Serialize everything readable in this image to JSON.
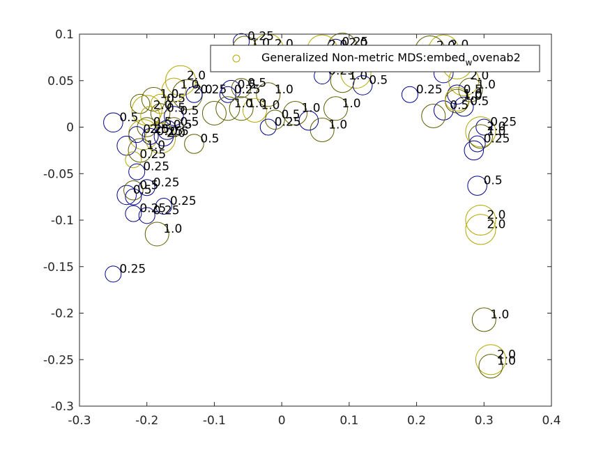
{
  "chart_data": {
    "type": "scatter",
    "title": "",
    "xlabel": "",
    "ylabel": "",
    "xlim": [
      -0.3,
      0.4
    ],
    "ylim": [
      -0.3,
      0.1
    ],
    "xticks": [
      -0.3,
      -0.2,
      -0.1,
      0,
      0.1,
      0.2,
      0.3,
      0.4
    ],
    "xtick_labels": [
      "-0.3",
      "-0.2",
      "-0.1",
      "0",
      "0.1",
      "0.2",
      "0.3",
      "0.4"
    ],
    "yticks": [
      -0.3,
      -0.25,
      -0.2,
      -0.15,
      -0.1,
      -0.05,
      0,
      0.05,
      0.1
    ],
    "ytick_labels": [
      "-0.3",
      "-0.25",
      "-0.2",
      "-0.15",
      "-0.1",
      "-0.05",
      "0",
      "0.05",
      "0.1"
    ],
    "grid": false,
    "legend": {
      "placement": "top-right",
      "entries": [
        {
          "text_main": "Generalized Non-metric MDS:embed",
          "text_sub": "w",
          "text_end": "ovenab2",
          "color": "#b3a800"
        }
      ]
    },
    "colors": {
      "blue": "#00008b",
      "olive": "#b3a800",
      "dark_olive": "#5c5c00",
      "axis": "#262626"
    },
    "series": [
      {
        "marker": "open-circle",
        "points": [
          {
            "x": -0.06,
            "y": 0.092,
            "label": "0.25",
            "color": "#00008b",
            "size": 0.25
          },
          {
            "x": -0.055,
            "y": 0.085,
            "label": "1.0",
            "color": "#5c5c00",
            "size": 1.0
          },
          {
            "x": -0.02,
            "y": 0.084,
            "label": "2.0",
            "color": "#b3a800",
            "size": 2.0
          },
          {
            "x": 0.08,
            "y": 0.086,
            "label": "0.25",
            "color": "#00008b",
            "size": 0.25
          },
          {
            "x": 0.09,
            "y": 0.085,
            "label": "2.0",
            "color": "#5c5c00",
            "size": 2.0
          },
          {
            "x": 0.06,
            "y": 0.083,
            "label": "2.0",
            "color": "#b3a800",
            "size": 2.0
          },
          {
            "x": 0.24,
            "y": 0.083,
            "label": "2.0",
            "color": "#b3a800",
            "size": 2.0
          },
          {
            "x": 0.22,
            "y": 0.082,
            "label": "2.0",
            "color": "#5c5c00",
            "size": 2.0
          },
          {
            "x": 0.06,
            "y": 0.055,
            "label": "0.25",
            "color": "#00008b",
            "size": 0.25
          },
          {
            "x": 0.11,
            "y": 0.058,
            "label": "2.0",
            "color": "#b3a800",
            "size": 2.0
          },
          {
            "x": 0.12,
            "y": 0.045,
            "label": "0.5",
            "color": "#00008b",
            "size": 0.5
          },
          {
            "x": 0.09,
            "y": 0.05,
            "label": "1.0",
            "color": "#5c5c00",
            "size": 1.0
          },
          {
            "x": 0.26,
            "y": 0.068,
            "label": "2.0",
            "color": "#b3a800",
            "size": 2.0
          },
          {
            "x": 0.24,
            "y": 0.058,
            "label": "0.5",
            "color": "#00008b",
            "size": 0.5
          },
          {
            "x": 0.27,
            "y": 0.05,
            "label": "2.0",
            "color": "#b3a800",
            "size": 2.0
          },
          {
            "x": 0.28,
            "y": 0.04,
            "label": "1.0",
            "color": "#5c5c00",
            "size": 1.0
          },
          {
            "x": 0.26,
            "y": 0.035,
            "label": "0.5",
            "color": "#00008b",
            "size": 0.5
          },
          {
            "x": 0.26,
            "y": 0.028,
            "label": "1.0",
            "color": "#5c5c00",
            "size": 1.0
          },
          {
            "x": 0.27,
            "y": 0.022,
            "label": "0.5",
            "color": "#00008b",
            "size": 0.5
          },
          {
            "x": 0.24,
            "y": 0.018,
            "label": "0.5",
            "color": "#00008b",
            "size": 0.5
          },
          {
            "x": 0.26,
            "y": 0.03,
            "label": "1.0",
            "color": "#b3a800",
            "size": 1.0
          },
          {
            "x": 0.19,
            "y": 0.035,
            "label": "0.25",
            "color": "#00008b",
            "size": 0.25
          },
          {
            "x": 0.225,
            "y": 0.012,
            "label": "",
            "color": "#5c5c00",
            "size": 1.0
          },
          {
            "x": 0.3,
            "y": 0.0,
            "label": "0.25",
            "color": "#00008b",
            "size": 0.25
          },
          {
            "x": 0.295,
            "y": -0.005,
            "label": "2.0",
            "color": "#b3a800",
            "size": 2.0
          },
          {
            "x": 0.295,
            "y": -0.01,
            "label": "1.0",
            "color": "#5c5c00",
            "size": 1.0
          },
          {
            "x": 0.29,
            "y": -0.018,
            "label": "0.25",
            "color": "#00008b",
            "size": 0.25
          },
          {
            "x": 0.285,
            "y": -0.025,
            "label": "",
            "color": "#00008b",
            "size": 0.5
          },
          {
            "x": 0.29,
            "y": -0.063,
            "label": "0.5",
            "color": "#00008b",
            "size": 0.5
          },
          {
            "x": 0.295,
            "y": -0.1,
            "label": "2.0",
            "color": "#b3a800",
            "size": 2.0
          },
          {
            "x": 0.295,
            "y": -0.11,
            "label": "2.0",
            "color": "#b3a800",
            "size": 2.0
          },
          {
            "x": 0.3,
            "y": -0.207,
            "label": "1.0",
            "color": "#5c5c00",
            "size": 1.0
          },
          {
            "x": 0.31,
            "y": -0.25,
            "label": "2.0",
            "color": "#b3a800",
            "size": 2.0
          },
          {
            "x": 0.31,
            "y": -0.257,
            "label": "1.0",
            "color": "#5c5c00",
            "size": 1.0
          },
          {
            "x": -0.15,
            "y": 0.05,
            "label": "2.0",
            "color": "#b3a800",
            "size": 2.0
          },
          {
            "x": -0.16,
            "y": 0.04,
            "label": "1.0",
            "color": "#b3a800",
            "size": 1.0
          },
          {
            "x": -0.14,
            "y": 0.035,
            "label": "2.0",
            "color": "#5c5c00",
            "size": 2.0
          },
          {
            "x": -0.13,
            "y": 0.035,
            "label": "0.25",
            "color": "#00008b",
            "size": 0.25
          },
          {
            "x": -0.075,
            "y": 0.04,
            "label": "0.5",
            "color": "#00008b",
            "size": 0.5
          },
          {
            "x": -0.06,
            "y": 0.042,
            "label": "0.5",
            "color": "#5c5c00",
            "size": 0.5
          },
          {
            "x": -0.08,
            "y": 0.035,
            "label": "0.25",
            "color": "#00008b",
            "size": 0.25
          },
          {
            "x": -0.02,
            "y": 0.035,
            "label": "1.0",
            "color": "#5c5c00",
            "size": 1.0
          },
          {
            "x": -0.08,
            "y": 0.02,
            "label": "1.0",
            "color": "#5c5c00",
            "size": 1.0
          },
          {
            "x": -0.06,
            "y": 0.02,
            "label": "1.0",
            "color": "#5c5c00",
            "size": 1.0
          },
          {
            "x": -0.04,
            "y": 0.018,
            "label": "1.0",
            "color": "#b3a800",
            "size": 1.0
          },
          {
            "x": -0.1,
            "y": 0.015,
            "label": "",
            "color": "#5c5c00",
            "size": 1.0
          },
          {
            "x": -0.19,
            "y": 0.03,
            "label": "1.0",
            "color": "#5c5c00",
            "size": 1.0
          },
          {
            "x": -0.18,
            "y": 0.025,
            "label": "0.5",
            "color": "#b3a800",
            "size": 0.5
          },
          {
            "x": -0.21,
            "y": 0.025,
            "label": "",
            "color": "#5c5c00",
            "size": 0.5
          },
          {
            "x": -0.2,
            "y": 0.018,
            "label": "2.0",
            "color": "#b3a800",
            "size": 2.0
          },
          {
            "x": -0.18,
            "y": 0.015,
            "label": "0.5",
            "color": "#5c5c00",
            "size": 0.5
          },
          {
            "x": -0.16,
            "y": 0.012,
            "label": "0.5",
            "color": "#00008b",
            "size": 0.5
          },
          {
            "x": -0.25,
            "y": 0.005,
            "label": "0.5",
            "color": "#00008b",
            "size": 0.5
          },
          {
            "x": -0.195,
            "y": 0.012,
            "label": "",
            "color": "#b3a800",
            "size": 0.5
          },
          {
            "x": -0.2,
            "y": 0.0,
            "label": "0.5",
            "color": "#5c5c00",
            "size": 0.5
          },
          {
            "x": -0.17,
            "y": -0.003,
            "label": "0.5",
            "color": "#00008b",
            "size": 0.5
          },
          {
            "x": -0.16,
            "y": 0.0,
            "label": "0.5",
            "color": "#5c5c00",
            "size": 0.5
          },
          {
            "x": -0.215,
            "y": -0.008,
            "label": "0.25",
            "color": "#00008b",
            "size": 0.25
          },
          {
            "x": -0.205,
            "y": -0.008,
            "label": "2.0",
            "color": "#b3a800",
            "size": 2.0
          },
          {
            "x": -0.195,
            "y": -0.01,
            "label": "0.25",
            "color": "#00008b",
            "size": 0.25
          },
          {
            "x": -0.18,
            "y": -0.012,
            "label": "2.0",
            "color": "#b3a800",
            "size": 2.0
          },
          {
            "x": -0.175,
            "y": -0.01,
            "label": "0.5",
            "color": "#00008b",
            "size": 0.5
          },
          {
            "x": -0.13,
            "y": -0.018,
            "label": "0.5",
            "color": "#5c5c00",
            "size": 0.5
          },
          {
            "x": -0.23,
            "y": -0.02,
            "label": "",
            "color": "#00008b",
            "size": 0.5
          },
          {
            "x": -0.21,
            "y": -0.025,
            "label": "1.0",
            "color": "#5c5c00",
            "size": 1.0
          },
          {
            "x": -0.22,
            "y": -0.035,
            "label": "0.25",
            "color": "#b3a800",
            "size": 0.25
          },
          {
            "x": -0.215,
            "y": -0.048,
            "label": "0.25",
            "color": "#00008b",
            "size": 0.25
          },
          {
            "x": -0.23,
            "y": -0.073,
            "label": "0.5",
            "color": "#00008b",
            "size": 0.5
          },
          {
            "x": -0.22,
            "y": -0.068,
            "label": "0.5",
            "color": "#5c5c00",
            "size": 0.5
          },
          {
            "x": -0.2,
            "y": -0.065,
            "label": "0.25",
            "color": "#00008b",
            "size": 0.25
          },
          {
            "x": -0.22,
            "y": -0.075,
            "label": "",
            "color": "#00008b",
            "size": 0.25
          },
          {
            "x": -0.22,
            "y": -0.093,
            "label": "0.25",
            "color": "#00008b",
            "size": 0.25
          },
          {
            "x": -0.2,
            "y": -0.095,
            "label": "0.25",
            "color": "#00008b",
            "size": 0.25
          },
          {
            "x": -0.175,
            "y": -0.085,
            "label": "0.25",
            "color": "#00008b",
            "size": 0.25
          },
          {
            "x": -0.185,
            "y": -0.115,
            "label": "1.0",
            "color": "#5c5c00",
            "size": 1.0
          },
          {
            "x": -0.25,
            "y": -0.158,
            "label": "0.25",
            "color": "#00008b",
            "size": 0.25
          },
          {
            "x": -0.02,
            "y": 0.0,
            "label": "0.25",
            "color": "#00008b",
            "size": 0.25
          },
          {
            "x": -0.01,
            "y": 0.008,
            "label": "0.5",
            "color": "#5c5c00",
            "size": 0.5
          },
          {
            "x": 0.02,
            "y": 0.015,
            "label": "1.0",
            "color": "#5c5c00",
            "size": 1.0
          },
          {
            "x": 0.08,
            "y": 0.02,
            "label": "1.0",
            "color": "#5c5c00",
            "size": 1.0
          },
          {
            "x": 0.06,
            "y": -0.003,
            "label": "1.0",
            "color": "#5c5c00",
            "size": 1.0
          },
          {
            "x": 0.04,
            "y": 0.007,
            "label": "",
            "color": "#00008b",
            "size": 0.5
          }
        ]
      }
    ]
  }
}
